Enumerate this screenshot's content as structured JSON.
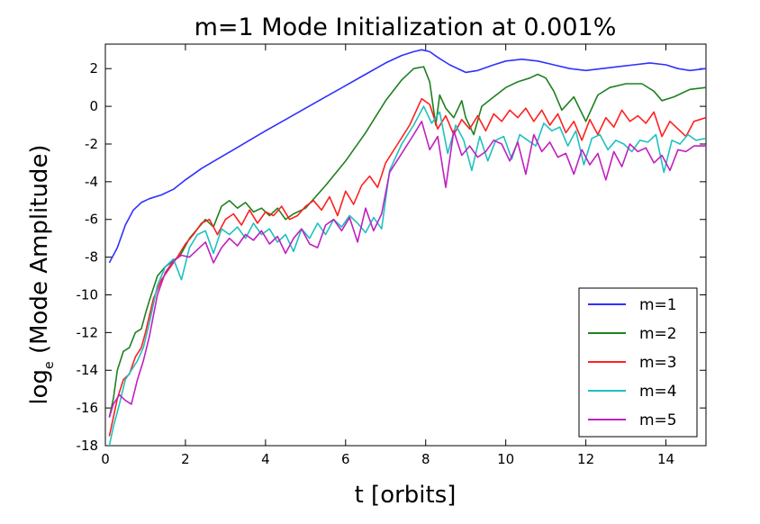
{
  "chart_data": {
    "type": "line",
    "title": "m=1 Mode Initialization at 0.001%",
    "xlabel": "t [orbits]",
    "ylabel_main": "log",
    "ylabel_sub": "e",
    "ylabel_rest": " (Mode Amplitude)",
    "xlim": [
      0,
      15
    ],
    "ylim": [
      -18,
      3.3
    ],
    "xticks": [
      0,
      2,
      4,
      6,
      8,
      10,
      12,
      14
    ],
    "yticks": [
      2,
      0,
      -2,
      -4,
      -6,
      -8,
      -10,
      -12,
      -14,
      -16,
      -18
    ],
    "grid": false,
    "legend_position": "lower-right",
    "series": [
      {
        "name": "m=1",
        "color": "#3030ff",
        "x": [
          0.1,
          0.3,
          0.5,
          0.7,
          0.9,
          1.1,
          1.4,
          1.7,
          2.0,
          2.4,
          2.8,
          3.2,
          3.6,
          4.0,
          4.5,
          5.0,
          5.5,
          6.0,
          6.5,
          7.0,
          7.4,
          7.7,
          7.9,
          8.1,
          8.3,
          8.6,
          9.0,
          9.3,
          9.7,
          10.0,
          10.4,
          10.8,
          11.2,
          11.6,
          12.0,
          12.4,
          12.8,
          13.2,
          13.6,
          14.0,
          14.3,
          14.6,
          15.0
        ],
        "y": [
          -8.3,
          -7.5,
          -6.3,
          -5.5,
          -5.1,
          -4.9,
          -4.7,
          -4.4,
          -3.9,
          -3.3,
          -2.8,
          -2.3,
          -1.8,
          -1.3,
          -0.7,
          -0.1,
          0.5,
          1.1,
          1.7,
          2.3,
          2.7,
          2.9,
          3.0,
          2.9,
          2.6,
          2.2,
          1.8,
          1.9,
          2.2,
          2.4,
          2.5,
          2.4,
          2.2,
          2.0,
          1.9,
          2.0,
          2.1,
          2.2,
          2.3,
          2.2,
          2.0,
          1.9,
          2.0
        ]
      },
      {
        "name": "m=2",
        "color": "#208020",
        "x": [
          0.1,
          0.2,
          0.3,
          0.45,
          0.6,
          0.75,
          0.9,
          1.0,
          1.1,
          1.3,
          1.5,
          1.7,
          1.9,
          2.1,
          2.3,
          2.5,
          2.7,
          2.9,
          3.1,
          3.3,
          3.5,
          3.7,
          3.9,
          4.1,
          4.3,
          4.5,
          4.7,
          4.9,
          5.0,
          5.5,
          6.0,
          6.5,
          7.0,
          7.4,
          7.7,
          7.95,
          8.1,
          8.25,
          8.35,
          8.5,
          8.7,
          8.9,
          9.0,
          9.2,
          9.4,
          9.7,
          10.0,
          10.3,
          10.6,
          10.8,
          11.0,
          11.2,
          11.4,
          11.7,
          12.0,
          12.3,
          12.6,
          13.0,
          13.4,
          13.7,
          13.9,
          14.2,
          14.6,
          15.0
        ],
        "y": [
          -16.5,
          -15.5,
          -14.0,
          -13.0,
          -12.8,
          -12.0,
          -11.8,
          -11.0,
          -10.3,
          -9.0,
          -8.5,
          -8.2,
          -7.8,
          -7.0,
          -6.5,
          -6.0,
          -6.4,
          -5.3,
          -5.0,
          -5.4,
          -5.1,
          -5.6,
          -5.4,
          -5.8,
          -5.4,
          -6.0,
          -5.7,
          -5.5,
          -5.4,
          -4.2,
          -2.9,
          -1.4,
          0.3,
          1.4,
          2.0,
          2.1,
          1.3,
          -1.0,
          0.6,
          -0.1,
          -0.6,
          0.3,
          -0.6,
          -1.5,
          0.0,
          0.5,
          1.0,
          1.3,
          1.5,
          1.7,
          1.5,
          0.8,
          -0.2,
          0.5,
          -0.8,
          0.6,
          1.0,
          1.2,
          1.2,
          0.8,
          0.3,
          0.5,
          0.9,
          1.0
        ]
      },
      {
        "name": "m=3",
        "color": "#ff2020",
        "x": [
          0.1,
          0.2,
          0.3,
          0.45,
          0.6,
          0.75,
          0.9,
          1.0,
          1.2,
          1.4,
          1.6,
          1.8,
          2.0,
          2.2,
          2.4,
          2.6,
          2.8,
          3.0,
          3.2,
          3.4,
          3.6,
          3.8,
          4.0,
          4.2,
          4.4,
          4.6,
          4.8,
          5.0,
          5.2,
          5.4,
          5.6,
          5.8,
          6.0,
          6.2,
          6.4,
          6.6,
          6.8,
          7.0,
          7.3,
          7.6,
          7.9,
          8.1,
          8.3,
          8.5,
          8.7,
          8.9,
          9.1,
          9.3,
          9.5,
          9.7,
          9.9,
          10.1,
          10.3,
          10.5,
          10.7,
          10.9,
          11.1,
          11.3,
          11.5,
          11.7,
          11.9,
          12.1,
          12.3,
          12.5,
          12.7,
          12.9,
          13.1,
          13.3,
          13.5,
          13.7,
          13.9,
          14.1,
          14.3,
          14.5,
          14.7,
          15.0
        ],
        "y": [
          -17.5,
          -16.5,
          -15.5,
          -14.5,
          -14.2,
          -13.3,
          -12.8,
          -12.0,
          -10.2,
          -9.2,
          -8.6,
          -8.0,
          -7.3,
          -6.8,
          -6.2,
          -6.0,
          -6.8,
          -6.0,
          -5.7,
          -6.3,
          -5.5,
          -6.2,
          -5.6,
          -5.8,
          -5.3,
          -6.0,
          -5.8,
          -5.3,
          -5.0,
          -5.5,
          -4.8,
          -5.8,
          -4.5,
          -5.2,
          -4.2,
          -3.7,
          -4.3,
          -3.0,
          -2.0,
          -1.0,
          0.4,
          0.1,
          -1.2,
          -0.5,
          -1.5,
          -0.7,
          -1.2,
          -0.5,
          -1.3,
          -0.4,
          -0.8,
          -0.2,
          -0.6,
          -0.1,
          -0.8,
          -0.2,
          -1.0,
          -0.4,
          -1.4,
          -0.8,
          -1.8,
          -0.7,
          -1.5,
          -0.6,
          -1.1,
          -0.2,
          -0.8,
          -0.5,
          -0.9,
          -0.3,
          -1.6,
          -0.8,
          -1.2,
          -1.6,
          -0.8,
          -0.6
        ]
      },
      {
        "name": "m=4",
        "color": "#20c0c0",
        "x": [
          0.1,
          0.2,
          0.35,
          0.5,
          0.65,
          0.8,
          0.95,
          1.1,
          1.3,
          1.5,
          1.7,
          1.9,
          2.1,
          2.3,
          2.5,
          2.7,
          2.9,
          3.1,
          3.3,
          3.5,
          3.7,
          3.9,
          4.1,
          4.3,
          4.5,
          4.7,
          4.9,
          5.1,
          5.3,
          5.5,
          5.7,
          5.9,
          6.1,
          6.3,
          6.5,
          6.7,
          6.9,
          7.1,
          7.4,
          7.7,
          7.95,
          8.15,
          8.35,
          8.55,
          8.75,
          8.95,
          9.15,
          9.35,
          9.55,
          9.75,
          9.95,
          10.15,
          10.35,
          10.55,
          10.75,
          10.95,
          11.15,
          11.35,
          11.55,
          11.75,
          11.95,
          12.15,
          12.35,
          12.55,
          12.75,
          12.95,
          13.15,
          13.35,
          13.55,
          13.75,
          13.95,
          14.15,
          14.35,
          14.55,
          14.75,
          15.0
        ],
        "y": [
          -18.0,
          -17.0,
          -15.8,
          -14.5,
          -14.0,
          -13.5,
          -12.8,
          -11.5,
          -9.5,
          -8.5,
          -8.1,
          -9.2,
          -7.5,
          -6.8,
          -6.6,
          -7.8,
          -6.5,
          -6.8,
          -6.4,
          -7.0,
          -6.2,
          -6.8,
          -6.5,
          -7.2,
          -6.8,
          -7.7,
          -6.5,
          -7.0,
          -6.2,
          -6.8,
          -6.0,
          -6.4,
          -5.8,
          -6.2,
          -6.7,
          -5.9,
          -6.5,
          -3.4,
          -2.0,
          -1.0,
          0.0,
          -0.9,
          -0.3,
          -2.5,
          -1.0,
          -1.8,
          -3.4,
          -1.6,
          -2.9,
          -1.8,
          -1.6,
          -2.8,
          -1.5,
          -1.8,
          -2.1,
          -0.9,
          -1.3,
          -1.1,
          -2.1,
          -1.3,
          -3.1,
          -1.7,
          -1.5,
          -2.3,
          -1.8,
          -2.0,
          -2.4,
          -1.8,
          -1.9,
          -1.5,
          -3.5,
          -1.8,
          -2.0,
          -1.5,
          -1.8,
          -1.7
        ]
      },
      {
        "name": "m=5",
        "color": "#c020c0",
        "x": [
          0.1,
          0.2,
          0.35,
          0.5,
          0.65,
          0.8,
          0.95,
          1.1,
          1.3,
          1.5,
          1.7,
          1.9,
          2.1,
          2.3,
          2.5,
          2.7,
          2.9,
          3.1,
          3.3,
          3.5,
          3.7,
          3.9,
          4.1,
          4.3,
          4.5,
          4.7,
          4.9,
          5.1,
          5.3,
          5.5,
          5.7,
          5.9,
          6.1,
          6.3,
          6.5,
          6.7,
          6.9,
          7.1,
          7.4,
          7.7,
          7.9,
          8.1,
          8.3,
          8.5,
          8.7,
          8.9,
          9.1,
          9.3,
          9.5,
          9.7,
          9.9,
          10.1,
          10.3,
          10.5,
          10.7,
          10.9,
          11.1,
          11.3,
          11.5,
          11.7,
          11.9,
          12.1,
          12.3,
          12.5,
          12.7,
          12.9,
          13.1,
          13.3,
          13.5,
          13.7,
          13.9,
          14.1,
          14.3,
          14.5,
          14.7,
          15.0
        ],
        "y": [
          -16.5,
          -15.8,
          -15.3,
          -15.6,
          -15.8,
          -14.5,
          -13.5,
          -12.2,
          -10.0,
          -8.8,
          -8.2,
          -7.9,
          -8.0,
          -7.6,
          -7.2,
          -8.3,
          -7.5,
          -7.0,
          -7.4,
          -6.8,
          -7.1,
          -6.6,
          -7.3,
          -6.9,
          -7.8,
          -7.0,
          -6.5,
          -7.3,
          -7.5,
          -6.3,
          -6.0,
          -6.6,
          -5.9,
          -7.2,
          -5.4,
          -6.6,
          -5.7,
          -3.5,
          -2.5,
          -1.5,
          -0.8,
          -2.3,
          -1.6,
          -4.3,
          -1.3,
          -2.6,
          -2.1,
          -2.7,
          -2.4,
          -1.8,
          -2.0,
          -2.9,
          -1.9,
          -3.6,
          -1.5,
          -2.4,
          -1.9,
          -2.7,
          -2.5,
          -3.6,
          -2.3,
          -3.1,
          -2.5,
          -3.9,
          -2.4,
          -3.2,
          -2.0,
          -2.4,
          -2.2,
          -3.0,
          -2.6,
          -3.4,
          -2.3,
          -2.4,
          -2.1,
          -2.1
        ]
      }
    ]
  }
}
